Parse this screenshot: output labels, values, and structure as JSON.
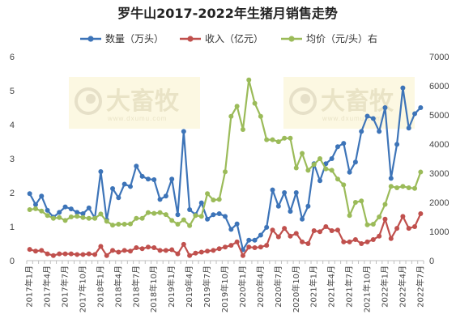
{
  "watermark": {
    "brand": "大畜牧",
    "url": "www.dxumu.com"
  },
  "chart_data": {
    "type": "line",
    "title": "罗牛山2017-2022年生猪月销售走势",
    "legend_position": "top-center",
    "grid": false,
    "x": [
      "2017年1月",
      "2017年2月",
      "2017年3月",
      "2017年4月",
      "2017年5月",
      "2017年6月",
      "2017年7月",
      "2017年8月",
      "2017年9月",
      "2017年10月",
      "2017年11月",
      "2017年12月",
      "2018年1月",
      "2018年2月",
      "2018年3月",
      "2018年4月",
      "2018年5月",
      "2018年6月",
      "2018年7月",
      "2018年8月",
      "2018年9月",
      "2018年10月",
      "2018年11月",
      "2018年12月",
      "2019年1月",
      "2019年2月",
      "2019年3月",
      "2019年4月",
      "2019年5月",
      "2019年6月",
      "2019年7月",
      "2019年8月",
      "2019年9月",
      "2019年10月",
      "2019年11月",
      "2019年12月",
      "2020年1月",
      "2020年2月",
      "2020年3月",
      "2020年4月",
      "2020年5月",
      "2020年6月",
      "2020年7月",
      "2020年8月",
      "2020年9月",
      "2020年10月",
      "2020年11月",
      "2020年12月",
      "2021年1月",
      "2021年2月",
      "2021年3月",
      "2021年4月",
      "2021年5月",
      "2021年6月",
      "2021年7月",
      "2021年8月",
      "2021年9月",
      "2021年10月",
      "2021年11月",
      "2021年12月",
      "2022年1月",
      "2022年2月",
      "2022年3月",
      "2022年4月",
      "2022年5月",
      "2022年6月",
      "2022年7月"
    ],
    "x_tick_labels": [
      "2017年1月",
      "2017年4月",
      "2017年7月",
      "2017年10月",
      "2018年1月",
      "2018年4月",
      "2018年7月",
      "2018年10月",
      "2019年1月",
      "2019年4月",
      "2019年7月",
      "2019年10月",
      "2020年1月",
      "2020年4月",
      "2020年7月",
      "2020年10月",
      "2021年1月",
      "2021年4月",
      "2021年7月",
      "2021年10月",
      "2022年1月",
      "2022年4月",
      "2022年7月"
    ],
    "y_left": {
      "min": 0,
      "max": 6,
      "ticks": [
        0,
        1,
        2,
        3,
        4,
        5,
        6
      ]
    },
    "y_right": {
      "min": 0,
      "max": 7000,
      "ticks": [
        0,
        1000,
        2000,
        3000,
        4000,
        5000,
        6000,
        7000
      ]
    },
    "series": [
      {
        "name": "数量（万头）",
        "axis": "left",
        "color": "#3d74b8",
        "values": [
          1.97,
          1.65,
          1.9,
          1.48,
          1.28,
          1.42,
          1.58,
          1.52,
          1.42,
          1.38,
          1.55,
          1.25,
          2.62,
          1.2,
          2.12,
          1.85,
          2.25,
          2.18,
          2.78,
          2.48,
          2.4,
          2.38,
          1.8,
          1.9,
          2.4,
          1.35,
          3.8,
          1.5,
          1.35,
          1.7,
          1.22,
          1.35,
          1.38,
          1.3,
          0.92,
          1.08,
          0.32,
          0.6,
          0.6,
          0.75,
          0.98,
          2.08,
          1.6,
          2.0,
          1.45,
          2.0,
          1.22,
          1.6,
          2.85,
          2.35,
          2.85,
          3.0,
          3.35,
          3.45,
          2.6,
          2.9,
          3.8,
          4.25,
          4.18,
          3.8,
          4.5,
          2.42,
          3.42,
          5.08,
          3.9,
          4.32,
          4.5
        ]
      },
      {
        "name": "收入（亿元）",
        "axis": "left",
        "color": "#c0504d",
        "values": [
          0.33,
          0.28,
          0.3,
          0.2,
          0.15,
          0.2,
          0.2,
          0.2,
          0.18,
          0.18,
          0.2,
          0.18,
          0.42,
          0.15,
          0.3,
          0.25,
          0.3,
          0.28,
          0.38,
          0.35,
          0.4,
          0.38,
          0.3,
          0.3,
          0.32,
          0.2,
          0.48,
          0.15,
          0.22,
          0.25,
          0.28,
          0.3,
          0.35,
          0.4,
          0.45,
          0.55,
          0.15,
          0.4,
          0.38,
          0.4,
          0.45,
          0.9,
          0.7,
          0.95,
          0.72,
          0.8,
          0.55,
          0.5,
          0.88,
          0.85,
          1.0,
          0.88,
          0.9,
          0.55,
          0.55,
          0.62,
          0.5,
          0.55,
          0.62,
          0.72,
          1.22,
          0.65,
          0.95,
          1.3,
          0.95,
          1.0,
          1.38
        ]
      },
      {
        "name": "均价（元/头）右",
        "axis": "right",
        "color": "#9bbb59",
        "values": [
          1750,
          1780,
          1700,
          1550,
          1450,
          1480,
          1380,
          1500,
          1520,
          1480,
          1450,
          1450,
          1600,
          1350,
          1220,
          1250,
          1250,
          1260,
          1450,
          1450,
          1650,
          1620,
          1650,
          1580,
          1380,
          1250,
          1400,
          1200,
          1550,
          1520,
          2300,
          2080,
          2100,
          3050,
          4950,
          5300,
          4500,
          6200,
          5400,
          4950,
          4150,
          4150,
          4080,
          4200,
          4200,
          3180,
          3680,
          3100,
          3300,
          3500,
          3150,
          3100,
          2800,
          2600,
          1550,
          2000,
          2050,
          1230,
          1250,
          1500,
          1930,
          2550,
          2500,
          2550,
          2500,
          2480,
          3040
        ]
      }
    ]
  }
}
